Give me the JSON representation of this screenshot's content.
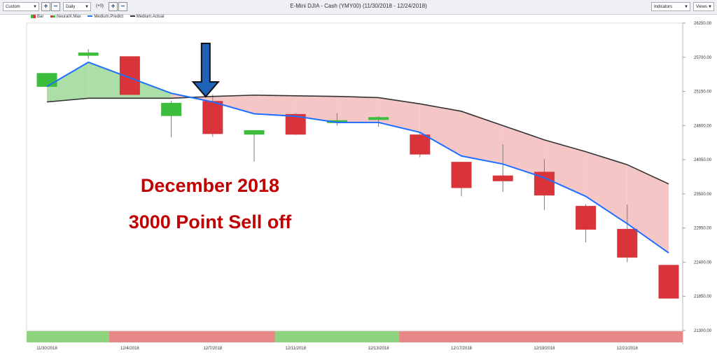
{
  "toolbar": {
    "view_select": "Custom",
    "interval_select": "Daily",
    "offset_label": "(+0)",
    "title": "E-Mini DJIA - Cash (YMY00) (11/30/2018 - 12/24/2018)",
    "indicators_label": "Indicators",
    "views_label": "Views"
  },
  "legend": [
    "Bar",
    "NeuralX.Max",
    "Medium.Predict",
    "Medium.Actual"
  ],
  "annotation": {
    "line1": "December 2018",
    "line2": "3000 Point Sell off"
  },
  "colors": {
    "up": "#3dbd3d",
    "down": "#d8343a",
    "predict": "#1f6fff",
    "actual": "#333333",
    "fill_bull": "#a8dca2",
    "fill_bear": "#f4c3c3",
    "strip_bull": "#8ed47f",
    "strip_bear": "#e88787",
    "arrow": "#1f63b8"
  },
  "chart_data": {
    "type": "candlestick",
    "y_tick_labels": [
      "26250.00",
      "25700.00",
      "25150.00",
      "24600.00",
      "24050.00",
      "23500.00",
      "22950.00",
      "22400.00",
      "21850.00",
      "21300.00"
    ],
    "ylim": [
      21300,
      26250
    ],
    "x_tick_labels": [
      "11/30/2018",
      "12/4/2018",
      "12/7/2018",
      "12/11/2018",
      "12/13/2018",
      "12/17/2018",
      "12/19/2018",
      "12/21/2018"
    ],
    "x_tick_index": [
      0,
      2,
      4,
      6,
      8,
      10,
      12,
      14
    ],
    "candles": [
      {
        "o": 25230,
        "h": 25430,
        "l": 25230,
        "c": 25440
      },
      {
        "o": 25730,
        "h": 25830,
        "l": 25670,
        "c": 25770
      },
      {
        "o": 25710,
        "h": 25710,
        "l": 25100,
        "c": 25100
      },
      {
        "o": 24760,
        "h": 25000,
        "l": 24410,
        "c": 24960
      },
      {
        "o": 24990,
        "h": 25100,
        "l": 24420,
        "c": 24470
      },
      {
        "o": 24460,
        "h": 24480,
        "l": 24020,
        "c": 24520
      },
      {
        "o": 24780,
        "h": 24800,
        "l": 24450,
        "c": 24460
      },
      {
        "o": 24660,
        "h": 24800,
        "l": 24600,
        "c": 24680
      },
      {
        "o": 24700,
        "h": 24750,
        "l": 24580,
        "c": 24730
      },
      {
        "o": 24450,
        "h": 24480,
        "l": 24090,
        "c": 24140
      },
      {
        "o": 24010,
        "h": 24010,
        "l": 23460,
        "c": 23600
      },
      {
        "o": 23790,
        "h": 24300,
        "l": 23530,
        "c": 23710
      },
      {
        "o": 23850,
        "h": 24060,
        "l": 23240,
        "c": 23480
      },
      {
        "o": 23300,
        "h": 23330,
        "l": 22720,
        "c": 22930
      },
      {
        "o": 22930,
        "h": 23330,
        "l": 22400,
        "c": 22480
      },
      {
        "o": 22350,
        "h": 22350,
        "l": 21820,
        "c": 21820
      }
    ],
    "series": [
      {
        "name": "Medium.Predict",
        "values": [
          25230,
          25620,
          null,
          25120,
          24980,
          24790,
          24750,
          24650,
          24650,
          24490,
          24110,
          23980,
          23760,
          23460,
          23020,
          22550
        ]
      },
      {
        "name": "Medium.Actual",
        "values": [
          24980,
          25040,
          null,
          25040,
          25070,
          25090,
          25080,
          25070,
          25050,
          24950,
          24830,
          24600,
          24370,
          24180,
          23970,
          23660
        ]
      }
    ],
    "signal_strip": [
      "bull",
      "bull",
      "bear",
      "bear",
      "bear",
      "bear",
      "bull",
      "bull",
      "bull",
      "bear",
      "bear",
      "bear",
      "bear",
      "bear",
      "bear",
      "bear"
    ],
    "arrow_index": 4
  }
}
